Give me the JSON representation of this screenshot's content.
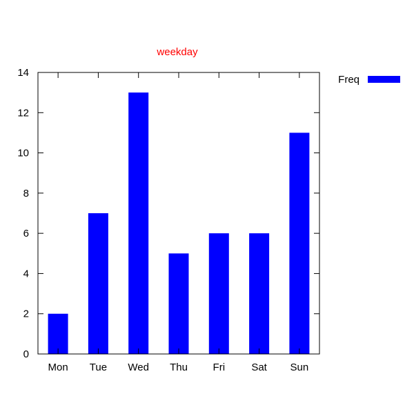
{
  "chart_data": {
    "type": "bar",
    "title": "weekday",
    "title_color": "#ff0000",
    "xlabel": "",
    "ylabel": "",
    "categories": [
      "Mon",
      "Tue",
      "Wed",
      "Thu",
      "Fri",
      "Sat",
      "Sun"
    ],
    "series": [
      {
        "name": "Freq",
        "color": "#0000ff",
        "values": [
          2,
          7,
          13,
          5,
          6,
          6,
          11
        ]
      }
    ],
    "ylim": [
      0,
      14
    ],
    "yticks": [
      "0",
      "2",
      "4",
      "6",
      "8",
      "10",
      "12",
      "14"
    ],
    "grid": false,
    "legend": "top-right, outside plot"
  }
}
